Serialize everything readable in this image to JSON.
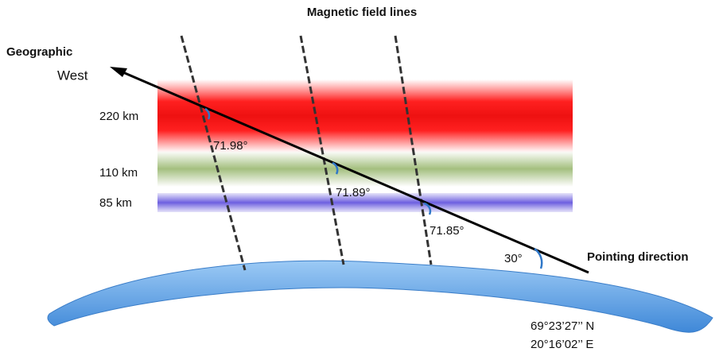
{
  "title": "Magnetic field lines",
  "direction": {
    "line1": "Geographic",
    "line2": "West"
  },
  "altitudes": [
    "220 km",
    "110 km",
    "85 km"
  ],
  "angles": [
    "71.98°",
    "71.89°",
    "71.85°"
  ],
  "ground_angle": "30°",
  "pointing": "Pointing direction",
  "coordinates": [
    "69°23’27’’ N",
    "20°16’02’’ E"
  ]
}
